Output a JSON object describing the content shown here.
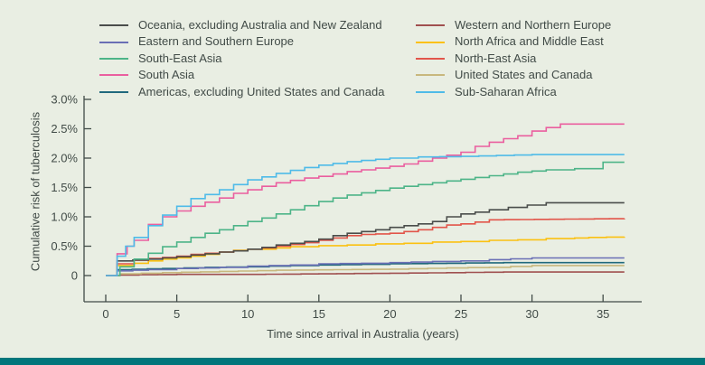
{
  "page": {
    "background": "#e9eee3",
    "footer_bar_color": "#00767b",
    "text_color": "#414b47",
    "axis_color": "#414b47"
  },
  "chart_data": {
    "type": "line",
    "style": "step-after",
    "title": "",
    "xlabel": "Time since arrival in Australia (years)",
    "ylabel": "Cumulative risk of tuberculosis",
    "xlim": [
      0,
      37
    ],
    "ylim": [
      0,
      3.0
    ],
    "grid": false,
    "x_ticks": [
      {
        "v": 0,
        "label": "0"
      },
      {
        "v": 5,
        "label": "5"
      },
      {
        "v": 10,
        "label": "10"
      },
      {
        "v": 15,
        "label": "15"
      },
      {
        "v": 20,
        "label": "20"
      },
      {
        "v": 25,
        "label": "25"
      },
      {
        "v": 30,
        "label": "30"
      },
      {
        "v": 35,
        "label": "35"
      }
    ],
    "y_ticks": [
      {
        "v": 0,
        "label": "0"
      },
      {
        "v": 0.5,
        "label": "0.5%"
      },
      {
        "v": 1.0,
        "label": "1.0%"
      },
      {
        "v": 1.5,
        "label": "1.5%"
      },
      {
        "v": 2.0,
        "label": "2.0%"
      },
      {
        "v": 2.5,
        "label": "2.5%"
      },
      {
        "v": 3.0,
        "label": "3.0%"
      }
    ],
    "legend": {
      "position": "top",
      "columns": [
        [
          "oceania",
          "eastern_southern_europe",
          "south_east_asia",
          "south_asia",
          "americas"
        ],
        [
          "western_northern_europe",
          "north_africa_middle_east",
          "north_east_asia",
          "united_states_canada",
          "sub_saharan_africa"
        ]
      ]
    },
    "draw_order": [
      "western_northern_europe",
      "united_states_canada",
      "americas",
      "eastern_southern_europe",
      "north_africa_middle_east",
      "north_east_asia",
      "oceania",
      "south_east_asia",
      "south_asia",
      "sub_saharan_africa"
    ],
    "series": {
      "oceania": {
        "label": "Oceania, excluding Australia and New Zealand",
        "color": "#4a4d4b",
        "points": [
          [
            0,
            0
          ],
          [
            0.8,
            0.25
          ],
          [
            3,
            0.28
          ],
          [
            4,
            0.3
          ],
          [
            5,
            0.32
          ],
          [
            6,
            0.35
          ],
          [
            7,
            0.37
          ],
          [
            8,
            0.4
          ],
          [
            9,
            0.42
          ],
          [
            10,
            0.45
          ],
          [
            11,
            0.48
          ],
          [
            12,
            0.52
          ],
          [
            13,
            0.55
          ],
          [
            14,
            0.58
          ],
          [
            15,
            0.62
          ],
          [
            16,
            0.68
          ],
          [
            17,
            0.72
          ],
          [
            18,
            0.75
          ],
          [
            19,
            0.78
          ],
          [
            20,
            0.82
          ],
          [
            21,
            0.85
          ],
          [
            22,
            0.88
          ],
          [
            23,
            0.92
          ],
          [
            24,
            1.0
          ],
          [
            25,
            1.05
          ],
          [
            26,
            1.08
          ],
          [
            27,
            1.12
          ],
          [
            31,
            1.24
          ],
          [
            36.5,
            1.24
          ]
        ]
      },
      "eastern_southern_europe": {
        "label": "Eastern and Southern Europe",
        "color": "#6a6fb5",
        "points": [
          [
            0,
            0
          ],
          [
            0.8,
            0.08
          ],
          [
            3,
            0.1
          ],
          [
            5,
            0.12
          ],
          [
            8,
            0.14
          ],
          [
            10,
            0.16
          ],
          [
            13,
            0.18
          ],
          [
            15,
            0.2
          ],
          [
            18,
            0.21
          ],
          [
            20,
            0.22
          ],
          [
            23,
            0.24
          ],
          [
            25,
            0.25
          ],
          [
            27,
            0.27
          ],
          [
            30,
            0.3
          ],
          [
            36.5,
            0.3
          ]
        ]
      },
      "south_east_asia": {
        "label": "South-East Asia",
        "color": "#4db488",
        "points": [
          [
            0,
            0
          ],
          [
            1,
            0.15
          ],
          [
            2,
            0.28
          ],
          [
            3,
            0.38
          ],
          [
            4,
            0.49
          ],
          [
            5,
            0.57
          ],
          [
            6,
            0.65
          ],
          [
            7,
            0.72
          ],
          [
            8,
            0.78
          ],
          [
            9,
            0.85
          ],
          [
            10,
            0.92
          ],
          [
            11,
            0.98
          ],
          [
            12,
            1.05
          ],
          [
            13,
            1.12
          ],
          [
            14,
            1.19
          ],
          [
            15,
            1.26
          ],
          [
            16,
            1.32
          ],
          [
            17,
            1.37
          ],
          [
            18,
            1.41
          ],
          [
            19,
            1.45
          ],
          [
            20,
            1.49
          ],
          [
            21,
            1.52
          ],
          [
            22,
            1.55
          ],
          [
            23,
            1.58
          ],
          [
            24,
            1.61
          ],
          [
            25,
            1.64
          ],
          [
            26,
            1.67
          ],
          [
            27,
            1.7
          ],
          [
            28,
            1.73
          ],
          [
            29,
            1.76
          ],
          [
            30,
            1.78
          ],
          [
            31,
            1.8
          ],
          [
            33,
            1.82
          ],
          [
            35,
            1.93
          ],
          [
            36.5,
            1.93
          ]
        ]
      },
      "south_asia": {
        "label": "South Asia",
        "color": "#ea5f9f",
        "points": [
          [
            0,
            0
          ],
          [
            0.8,
            0.37
          ],
          [
            1.5,
            0.5
          ],
          [
            2,
            0.6
          ],
          [
            3,
            0.87
          ],
          [
            4,
            1.0
          ],
          [
            5,
            1.1
          ],
          [
            6,
            1.18
          ],
          [
            7,
            1.25
          ],
          [
            8,
            1.32
          ],
          [
            9,
            1.4
          ],
          [
            10,
            1.46
          ],
          [
            11,
            1.52
          ],
          [
            12,
            1.58
          ],
          [
            13,
            1.62
          ],
          [
            14,
            1.66
          ],
          [
            15,
            1.69
          ],
          [
            16,
            1.73
          ],
          [
            17,
            1.77
          ],
          [
            18,
            1.8
          ],
          [
            19,
            1.83
          ],
          [
            20,
            1.86
          ],
          [
            21,
            1.9
          ],
          [
            22,
            1.95
          ],
          [
            23,
            2.0
          ],
          [
            24,
            2.05
          ],
          [
            25,
            2.1
          ],
          [
            26,
            2.2
          ],
          [
            27,
            2.27
          ],
          [
            28,
            2.33
          ],
          [
            29,
            2.38
          ],
          [
            30,
            2.46
          ],
          [
            31,
            2.52
          ],
          [
            32,
            2.58
          ],
          [
            36.5,
            2.58
          ]
        ]
      },
      "americas": {
        "label": "Americas, excluding United States and Canada",
        "color": "#20697d",
        "points": [
          [
            0,
            0
          ],
          [
            0.8,
            0.1
          ],
          [
            4,
            0.12
          ],
          [
            7,
            0.14
          ],
          [
            10,
            0.15
          ],
          [
            13,
            0.17
          ],
          [
            15,
            0.18
          ],
          [
            18,
            0.19
          ],
          [
            20,
            0.2
          ],
          [
            24,
            0.21
          ],
          [
            28,
            0.22
          ],
          [
            36.5,
            0.22
          ]
        ]
      },
      "western_northern_europe": {
        "label": "Western and Northern Europe",
        "color": "#a05050",
        "points": [
          [
            0,
            0
          ],
          [
            1,
            0.01
          ],
          [
            5,
            0.02
          ],
          [
            10,
            0.02
          ],
          [
            15,
            0.03
          ],
          [
            20,
            0.04
          ],
          [
            24,
            0.05
          ],
          [
            28,
            0.06
          ],
          [
            36.5,
            0.06
          ]
        ]
      },
      "north_africa_middle_east": {
        "label": "North Africa and Middle East",
        "color": "#fbc112",
        "points": [
          [
            0,
            0
          ],
          [
            0.8,
            0.17
          ],
          [
            2,
            0.21
          ],
          [
            3,
            0.25
          ],
          [
            4,
            0.28
          ],
          [
            5,
            0.3
          ],
          [
            6,
            0.33
          ],
          [
            7,
            0.36
          ],
          [
            8,
            0.4
          ],
          [
            9,
            0.43
          ],
          [
            10,
            0.45
          ],
          [
            12,
            0.47
          ],
          [
            13,
            0.49
          ],
          [
            15,
            0.51
          ],
          [
            17,
            0.52
          ],
          [
            19,
            0.54
          ],
          [
            21,
            0.55
          ],
          [
            23,
            0.57
          ],
          [
            25,
            0.58
          ],
          [
            27,
            0.6
          ],
          [
            29,
            0.61
          ],
          [
            31,
            0.63
          ],
          [
            33,
            0.64
          ],
          [
            34,
            0.65
          ],
          [
            36.5,
            0.66
          ]
        ]
      },
      "north_east_asia": {
        "label": "North-East Asia",
        "color": "#e2554a",
        "points": [
          [
            0,
            0
          ],
          [
            0.8,
            0.2
          ],
          [
            2,
            0.26
          ],
          [
            3,
            0.29
          ],
          [
            4,
            0.31
          ],
          [
            5,
            0.33
          ],
          [
            6,
            0.36
          ],
          [
            7,
            0.38
          ],
          [
            8,
            0.4
          ],
          [
            9,
            0.42
          ],
          [
            10,
            0.45
          ],
          [
            11,
            0.47
          ],
          [
            12,
            0.5
          ],
          [
            13,
            0.53
          ],
          [
            14,
            0.56
          ],
          [
            15,
            0.6
          ],
          [
            16,
            0.64
          ],
          [
            17,
            0.68
          ],
          [
            18,
            0.7
          ],
          [
            19,
            0.71
          ],
          [
            20,
            0.72
          ],
          [
            21,
            0.75
          ],
          [
            22,
            0.78
          ],
          [
            23,
            0.82
          ],
          [
            24,
            0.86
          ],
          [
            25,
            0.88
          ],
          [
            26,
            0.91
          ],
          [
            27,
            0.95
          ],
          [
            36.5,
            0.97
          ]
        ]
      },
      "united_states_canada": {
        "label": "United States and Canada",
        "color": "#c8b87e",
        "points": [
          [
            0,
            0
          ],
          [
            1,
            0.03
          ],
          [
            4,
            0.05
          ],
          [
            8,
            0.07
          ],
          [
            12,
            0.09
          ],
          [
            16,
            0.1
          ],
          [
            20,
            0.11
          ],
          [
            24,
            0.13
          ],
          [
            27,
            0.14
          ],
          [
            30,
            0.17
          ],
          [
            36.5,
            0.17
          ]
        ]
      },
      "sub_saharan_africa": {
        "label": "Sub-Saharan Africa",
        "color": "#4fbbe8",
        "points": [
          [
            0,
            0
          ],
          [
            0.8,
            0.33
          ],
          [
            1.4,
            0.5
          ],
          [
            2,
            0.65
          ],
          [
            3,
            0.85
          ],
          [
            4,
            1.03
          ],
          [
            5,
            1.18
          ],
          [
            6,
            1.31
          ],
          [
            7,
            1.38
          ],
          [
            8,
            1.46
          ],
          [
            9,
            1.55
          ],
          [
            10,
            1.63
          ],
          [
            11,
            1.68
          ],
          [
            12,
            1.74
          ],
          [
            13,
            1.79
          ],
          [
            14,
            1.84
          ],
          [
            15,
            1.88
          ],
          [
            16,
            1.91
          ],
          [
            17,
            1.94
          ],
          [
            18,
            1.96
          ],
          [
            19,
            1.98
          ],
          [
            20,
            2.0
          ],
          [
            22,
            2.02
          ],
          [
            25,
            2.03
          ],
          [
            30,
            2.06
          ],
          [
            36.5,
            2.06
          ]
        ]
      }
    }
  }
}
